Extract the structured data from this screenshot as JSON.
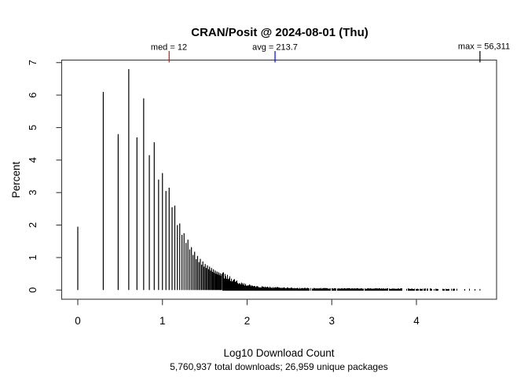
{
  "chart_data": {
    "type": "bar",
    "title": "CRAN/Posit @ 2024-08-01 (Thu)",
    "xlabel": "Log10 Download Count",
    "ylabel": "Percent",
    "sub_caption": "5,760,937 total downloads; 26,959 unique packages",
    "x_ticks": [
      0,
      1,
      2,
      3,
      4
    ],
    "y_ticks": [
      0,
      1,
      2,
      3,
      4,
      5,
      6,
      7
    ],
    "xlim": [
      -0.19,
      4.94
    ],
    "ylim": [
      -0.28,
      7.08
    ],
    "grid": false,
    "bar_color": "#000000",
    "box_color": "#3a3a3a",
    "stats": {
      "median_downloads": 12,
      "avg_downloads": 213.7,
      "max_downloads": 56311,
      "total_downloads": 5760937,
      "unique_packages": 26959
    },
    "annotations": [
      {
        "label": "med = 12",
        "log10_x": 1.0792,
        "color": "#ff0000"
      },
      {
        "label": "avg = 213.7",
        "log10_x": 2.3298,
        "color": "#0000ff"
      },
      {
        "label": "max = 56,311",
        "log10_x": 4.7506,
        "color": "#000000"
      }
    ],
    "spikes_pct_by_download_count": [
      [
        1,
        1.95
      ],
      [
        2,
        6.1
      ],
      [
        3,
        4.8
      ],
      [
        4,
        6.8
      ],
      [
        5,
        4.7
      ],
      [
        6,
        5.9
      ],
      [
        7,
        4.15
      ],
      [
        8,
        4.55
      ],
      [
        9,
        3.4
      ],
      [
        10,
        3.6
      ],
      [
        11,
        3.05
      ],
      [
        12,
        3.15
      ],
      [
        13,
        2.55
      ],
      [
        14,
        2.6
      ],
      [
        15,
        2.0
      ],
      [
        16,
        2.05
      ],
      [
        17,
        1.7
      ],
      [
        18,
        1.75
      ],
      [
        19,
        1.45
      ],
      [
        20,
        1.55
      ],
      [
        21,
        1.25
      ],
      [
        22,
        1.32
      ],
      [
        23,
        1.08
      ],
      [
        24,
        1.18
      ],
      [
        25,
        0.95
      ],
      [
        26,
        1.05
      ],
      [
        27,
        0.86
      ],
      [
        28,
        0.96
      ],
      [
        29,
        0.78
      ],
      [
        30,
        0.88
      ],
      [
        31,
        0.72
      ],
      [
        32,
        0.8
      ],
      [
        33,
        0.68
      ],
      [
        34,
        0.76
      ],
      [
        35,
        0.64
      ],
      [
        36,
        0.72
      ],
      [
        37,
        0.6
      ],
      [
        38,
        0.68
      ],
      [
        39,
        0.56
      ],
      [
        40,
        0.64
      ],
      [
        41,
        0.53
      ],
      [
        42,
        0.6
      ],
      [
        43,
        0.5
      ],
      [
        44,
        0.57
      ],
      [
        45,
        0.48
      ],
      [
        46,
        0.55
      ],
      [
        47,
        0.46
      ],
      [
        48,
        0.52
      ],
      [
        49,
        0.44
      ],
      [
        50,
        0.5
      ]
    ],
    "tail_segments": [
      {
        "from": 1.705,
        "to": 2.1,
        "start_pct": 0.45,
        "end_pct": 0.1,
        "gap_chance": 0.0
      },
      {
        "from": 2.1,
        "to": 2.6,
        "start_pct": 0.1,
        "end_pct": 0.055,
        "gap_chance": 0.0
      },
      {
        "from": 2.6,
        "to": 3.6,
        "start_pct": 0.055,
        "end_pct": 0.042,
        "gap_chance": 0.05
      },
      {
        "from": 3.6,
        "to": 4.1,
        "start_pct": 0.045,
        "end_pct": 0.036,
        "gap_chance": 0.28
      },
      {
        "from": 4.1,
        "to": 4.45,
        "start_pct": 0.04,
        "end_pct": 0.032,
        "gap_chance": 0.55
      },
      {
        "from": 4.45,
        "to": 4.72,
        "start_pct": 0.035,
        "end_pct": 0.03,
        "gap_chance": 0.75
      }
    ],
    "final_spike": {
      "log10_x": 4.7506,
      "pct": 0.035
    }
  }
}
